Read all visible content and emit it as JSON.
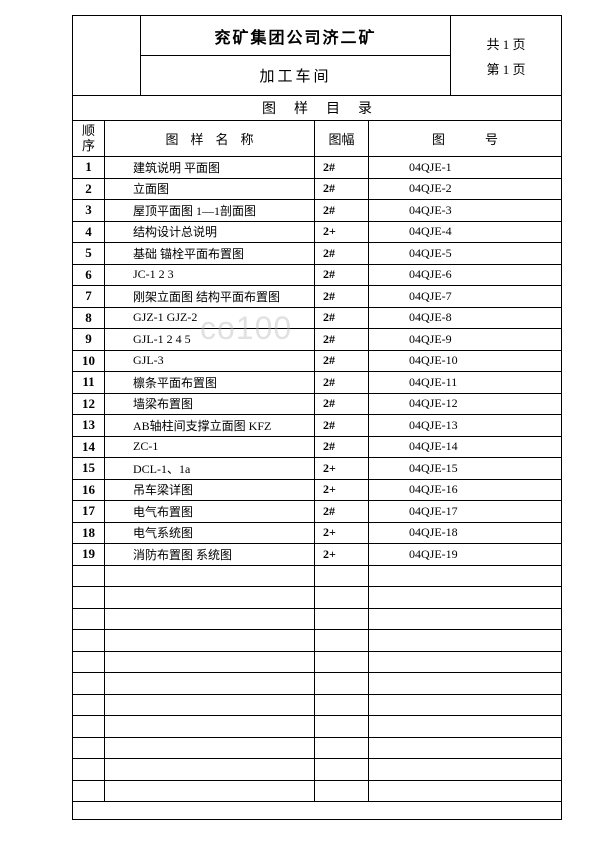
{
  "header": {
    "title_line1": "兖矿集团公司济二矿",
    "title_line2": "加工车间",
    "page_total": "共 1 页",
    "page_current": "第 1 页"
  },
  "section_title": "图样目录",
  "columns": {
    "seq": "顺序",
    "name": "图样名称",
    "size": "图幅",
    "number": "图号"
  },
  "rows": [
    {
      "seq": "1",
      "name": "建筑说明 平面图",
      "size": "2#",
      "number": "04QJE-1"
    },
    {
      "seq": "2",
      "name": "立面图",
      "size": "2#",
      "number": "04QJE-2"
    },
    {
      "seq": "3",
      "name": "屋顶平面图 1—1剖面图",
      "size": "2#",
      "number": "04QJE-3"
    },
    {
      "seq": "4",
      "name": "结构设计总说明",
      "size": "2+",
      "number": "04QJE-4"
    },
    {
      "seq": "5",
      "name": "基础 锚栓平面布置图",
      "size": "2#",
      "number": "04QJE-5"
    },
    {
      "seq": "6",
      "name": "JC-1 2 3",
      "size": "2#",
      "number": "04QJE-6"
    },
    {
      "seq": "7",
      "name": "刚架立面图 结构平面布置图",
      "size": "2#",
      "number": "04QJE-7"
    },
    {
      "seq": "8",
      "name": "GJZ-1 GJZ-2",
      "size": "2#",
      "number": "04QJE-8"
    },
    {
      "seq": "9",
      "name": "GJL-1 2 4 5",
      "size": "2#",
      "number": "04QJE-9"
    },
    {
      "seq": "10",
      "name": "GJL-3",
      "size": "2#",
      "number": "04QJE-10"
    },
    {
      "seq": "11",
      "name": "檩条平面布置图",
      "size": "2#",
      "number": "04QJE-11"
    },
    {
      "seq": "12",
      "name": "墙梁布置图",
      "size": "2#",
      "number": "04QJE-12"
    },
    {
      "seq": "13",
      "name": "AB轴柱间支撑立面图 KFZ",
      "size": "2#",
      "number": "04QJE-13"
    },
    {
      "seq": "14",
      "name": "ZC-1",
      "size": "2#",
      "number": "04QJE-14"
    },
    {
      "seq": "15",
      "name": "DCL-1、1a",
      "size": "2+",
      "number": "04QJE-15"
    },
    {
      "seq": "16",
      "name": "吊车梁详图",
      "size": "2+",
      "number": "04QJE-16"
    },
    {
      "seq": "17",
      "name": "电气布置图",
      "size": "2#",
      "number": "04QJE-17"
    },
    {
      "seq": "18",
      "name": "电气系统图",
      "size": "2+",
      "number": "04QJE-18"
    },
    {
      "seq": "19",
      "name": "消防布置图 系统图",
      "size": "2+",
      "number": "04QJE-19"
    }
  ],
  "empty_rows_count": 11,
  "watermark": "co100"
}
